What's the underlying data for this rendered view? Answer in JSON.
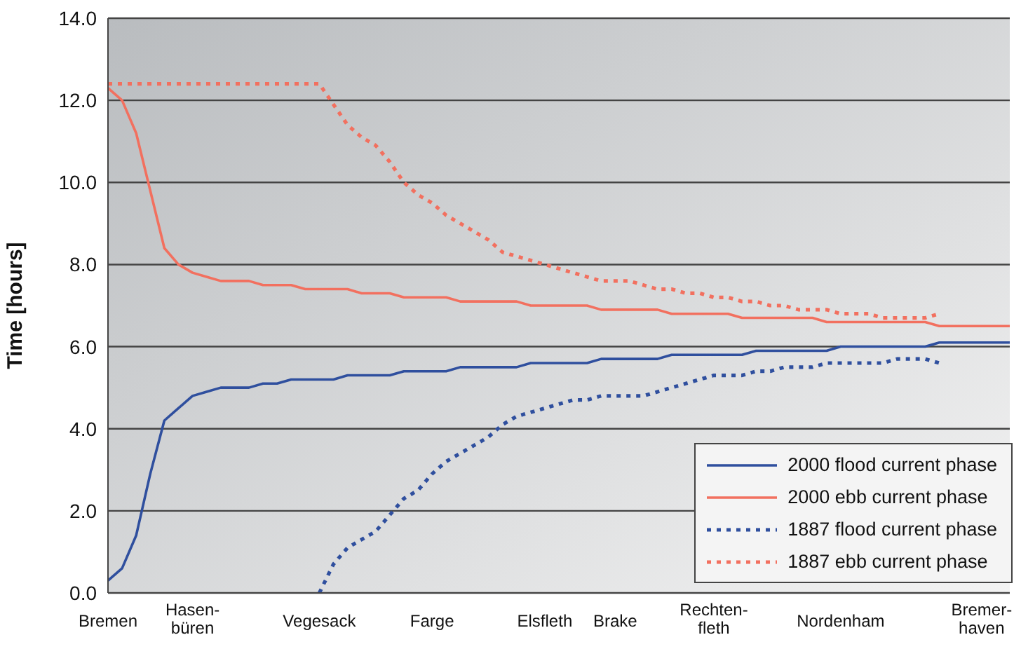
{
  "chart_data": {
    "type": "line",
    "ylabel": "Time [hours]",
    "categories": [
      "Bremen",
      null,
      null,
      null,
      null,
      null,
      "Hasen-\nbüren",
      null,
      null,
      null,
      null,
      null,
      null,
      null,
      null,
      "Vegesack",
      null,
      null,
      null,
      null,
      null,
      null,
      null,
      "Farge",
      null,
      null,
      null,
      null,
      null,
      null,
      null,
      "Elsfleth",
      null,
      null,
      null,
      null,
      "Brake",
      null,
      null,
      null,
      null,
      null,
      null,
      "Rechten-\nfleth",
      null,
      null,
      null,
      null,
      null,
      null,
      null,
      null,
      "Nordenham",
      null,
      null,
      null,
      null,
      null,
      null,
      null,
      null,
      null,
      "Bremer-\nhaven",
      null,
      null
    ],
    "series": [
      {
        "name": "2000 flood current phase",
        "color": "#2f4f9e",
        "line_style": "solid",
        "values": [
          0.3,
          0.6,
          1.4,
          2.9,
          4.2,
          4.5,
          4.8,
          4.9,
          5.0,
          5.0,
          5.0,
          5.1,
          5.1,
          5.2,
          5.2,
          5.2,
          5.2,
          5.3,
          5.3,
          5.3,
          5.3,
          5.4,
          5.4,
          5.4,
          5.4,
          5.5,
          5.5,
          5.5,
          5.5,
          5.5,
          5.6,
          5.6,
          5.6,
          5.6,
          5.6,
          5.7,
          5.7,
          5.7,
          5.7,
          5.7,
          5.8,
          5.8,
          5.8,
          5.8,
          5.8,
          5.8,
          5.9,
          5.9,
          5.9,
          5.9,
          5.9,
          5.9,
          6.0,
          6.0,
          6.0,
          6.0,
          6.0,
          6.0,
          6.0,
          6.1,
          6.1,
          6.1,
          6.1,
          6.1,
          6.1
        ]
      },
      {
        "name": "2000 ebb current phase",
        "color": "#f2705f",
        "line_style": "solid",
        "values": [
          12.3,
          12.0,
          11.2,
          9.8,
          8.4,
          8.0,
          7.8,
          7.7,
          7.6,
          7.6,
          7.6,
          7.5,
          7.5,
          7.5,
          7.4,
          7.4,
          7.4,
          7.4,
          7.3,
          7.3,
          7.3,
          7.2,
          7.2,
          7.2,
          7.2,
          7.1,
          7.1,
          7.1,
          7.1,
          7.1,
          7.0,
          7.0,
          7.0,
          7.0,
          7.0,
          6.9,
          6.9,
          6.9,
          6.9,
          6.9,
          6.8,
          6.8,
          6.8,
          6.8,
          6.8,
          6.7,
          6.7,
          6.7,
          6.7,
          6.7,
          6.7,
          6.6,
          6.6,
          6.6,
          6.6,
          6.6,
          6.6,
          6.6,
          6.6,
          6.5,
          6.5,
          6.5,
          6.5,
          6.5,
          6.5
        ]
      },
      {
        "name": "1887 flood current phase",
        "color": "#2f4f9e",
        "line_style": "dotted",
        "values": [
          null,
          null,
          null,
          null,
          null,
          null,
          null,
          null,
          null,
          null,
          null,
          null,
          null,
          null,
          null,
          0.0,
          0.7,
          1.1,
          1.3,
          1.5,
          1.9,
          2.3,
          2.5,
          2.9,
          3.2,
          3.4,
          3.6,
          3.8,
          4.1,
          4.3,
          4.4,
          4.5,
          4.6,
          4.7,
          4.7,
          4.8,
          4.8,
          4.8,
          4.8,
          4.9,
          5.0,
          5.1,
          5.2,
          5.3,
          5.3,
          5.3,
          5.4,
          5.4,
          5.5,
          5.5,
          5.5,
          5.6,
          5.6,
          5.6,
          5.6,
          5.6,
          5.7,
          5.7,
          5.7,
          5.6,
          null,
          null,
          null,
          null,
          null
        ]
      },
      {
        "name": "1887 ebb current phase",
        "color": "#f2705f",
        "line_style": "dotted",
        "values": [
          12.4,
          12.4,
          12.4,
          12.4,
          12.4,
          12.4,
          12.4,
          12.4,
          12.4,
          12.4,
          12.4,
          12.4,
          12.4,
          12.4,
          12.4,
          12.4,
          11.9,
          11.4,
          11.1,
          10.9,
          10.5,
          10.0,
          9.7,
          9.5,
          9.2,
          9.0,
          8.8,
          8.6,
          8.3,
          8.2,
          8.1,
          8.0,
          7.9,
          7.8,
          7.7,
          7.6,
          7.6,
          7.6,
          7.5,
          7.4,
          7.4,
          7.3,
          7.3,
          7.2,
          7.2,
          7.1,
          7.1,
          7.0,
          7.0,
          6.9,
          6.9,
          6.9,
          6.8,
          6.8,
          6.8,
          6.7,
          6.7,
          6.7,
          6.7,
          6.8,
          null,
          null,
          null,
          null,
          null
        ]
      }
    ],
    "ylim": [
      0,
      14
    ],
    "yticks": [
      {
        "value": 0,
        "label": "0.0"
      },
      {
        "value": 2,
        "label": "2.0"
      },
      {
        "value": 4,
        "label": "4.0"
      },
      {
        "value": 6,
        "label": "6.0"
      },
      {
        "value": 8,
        "label": "8.0"
      },
      {
        "value": 10,
        "label": "10.0"
      },
      {
        "value": 12,
        "label": "12.0"
      },
      {
        "value": 14,
        "label": "14.0"
      }
    ],
    "grid": "y",
    "legend": "bottom right",
    "marker": "none"
  }
}
